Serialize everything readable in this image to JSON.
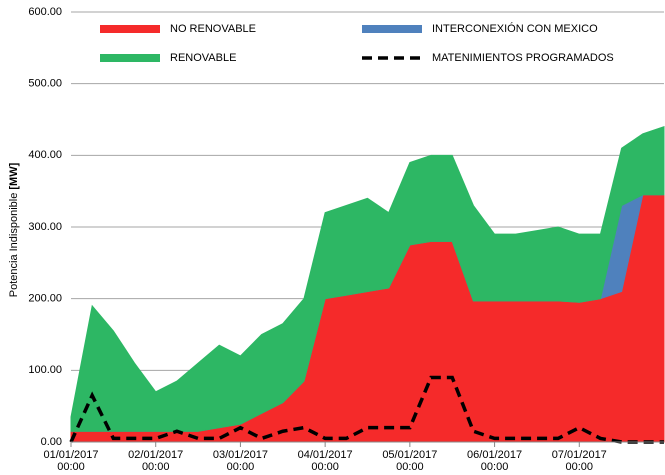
{
  "chart_data": {
    "type": "stacked_area",
    "y_label": "Potencia Indisponible",
    "y_unit": "[MW]",
    "x": [
      "2017-01-01T00:00",
      "2017-01-01T06:00",
      "2017-01-01T12:00",
      "2017-01-01T18:00",
      "2017-01-02T00:00",
      "2017-01-02T06:00",
      "2017-01-02T12:00",
      "2017-01-02T18:00",
      "2017-01-03T00:00",
      "2017-01-03T06:00",
      "2017-01-03T12:00",
      "2017-01-03T18:00",
      "2017-01-04T00:00",
      "2017-01-04T06:00",
      "2017-01-04T12:00",
      "2017-01-04T18:00",
      "2017-01-05T00:00",
      "2017-01-05T06:00",
      "2017-01-05T12:00",
      "2017-01-05T18:00",
      "2017-01-06T00:00",
      "2017-01-06T06:00",
      "2017-01-06T12:00",
      "2017-01-06T18:00",
      "2017-01-07T00:00",
      "2017-01-07T06:00",
      "2017-01-07T12:00",
      "2017-01-07T18:00",
      "2017-01-08T00:00"
    ],
    "xlim": [
      "2017-01-01T00:00",
      "2017-01-08T00:00"
    ],
    "xticks": [
      {
        "value": "2017-01-01T00:00",
        "label": "01/01/2017 00:00"
      },
      {
        "value": "2017-01-02T00:00",
        "label": "02/01/2017 00:00"
      },
      {
        "value": "2017-01-03T00:00",
        "label": "03/01/2017 00:00"
      },
      {
        "value": "2017-01-04T00:00",
        "label": "04/01/2017 00:00"
      },
      {
        "value": "2017-01-05T00:00",
        "label": "05/01/2017 00:00"
      },
      {
        "value": "2017-01-06T00:00",
        "label": "06/01/2017 00:00"
      },
      {
        "value": "2017-01-07T00:00",
        "label": "07/01/2017 00:00"
      }
    ],
    "ylim": [
      0,
      600
    ],
    "yticks": [
      {
        "value": 0,
        "label": "0.00"
      },
      {
        "value": 100,
        "label": "100.00"
      },
      {
        "value": 200,
        "label": "200.00"
      },
      {
        "value": 300,
        "label": "300.00"
      },
      {
        "value": 400,
        "label": "400.00"
      },
      {
        "value": 500,
        "label": "500.00"
      },
      {
        "value": 600,
        "label": "600.00"
      }
    ],
    "grid": true,
    "series": [
      {
        "name": "NO RENOVABLE",
        "color": "#f52a2a",
        "stacked": true,
        "values": [
          15,
          15,
          15,
          15,
          15,
          15,
          15,
          20,
          25,
          40,
          55,
          85,
          200,
          205,
          210,
          215,
          275,
          280,
          280,
          197,
          197,
          197,
          197,
          197,
          195,
          200,
          210,
          345,
          345
        ]
      },
      {
        "name": "INTERCONEXIÓN CON MEXICO",
        "color": "#4f81bd",
        "stacked": true,
        "values": [
          0,
          0,
          0,
          0,
          0,
          0,
          0,
          0,
          0,
          0,
          0,
          0,
          0,
          0,
          0,
          0,
          0,
          0,
          0,
          0,
          0,
          0,
          0,
          0,
          0,
          0,
          120,
          0,
          0
        ]
      },
      {
        "name": "RENOVABLE",
        "color": "#2db764",
        "stacked": true,
        "values": [
          20,
          175,
          140,
          95,
          55,
          70,
          95,
          115,
          95,
          110,
          110,
          115,
          120,
          125,
          130,
          105,
          115,
          120,
          120,
          133,
          93,
          93,
          98,
          103,
          95,
          90,
          80,
          85,
          95
        ]
      },
      {
        "name": "MATENIMIENTOS PROGRAMADOS",
        "color": "#000000",
        "stacked": false,
        "dashed": true,
        "values": [
          0,
          65,
          5,
          5,
          5,
          15,
          5,
          5,
          20,
          5,
          15,
          20,
          5,
          5,
          20,
          20,
          20,
          90,
          90,
          15,
          5,
          5,
          5,
          5,
          20,
          5,
          0,
          0,
          0
        ]
      }
    ]
  }
}
